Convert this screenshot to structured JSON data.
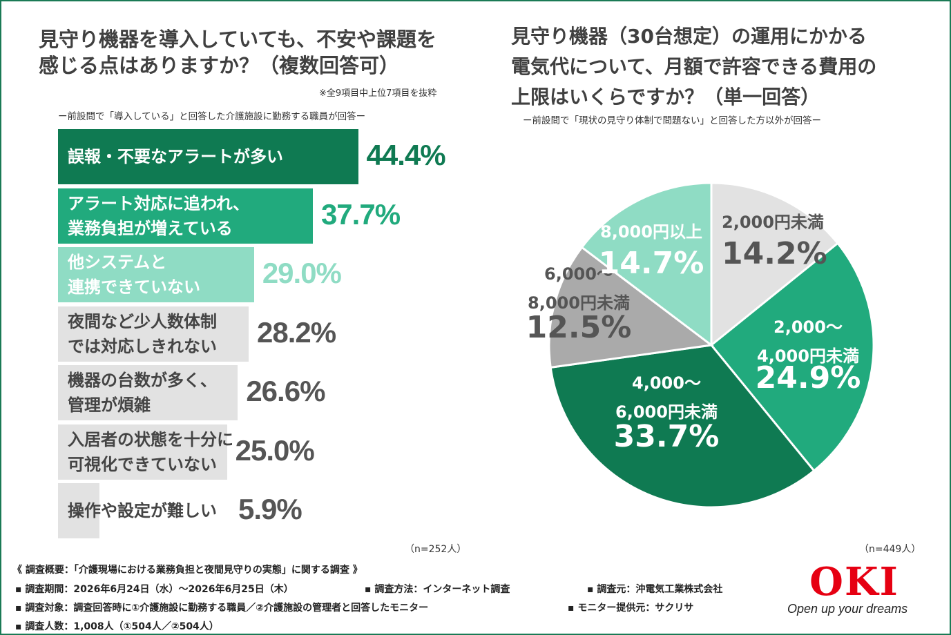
{
  "left": {
    "title": "見守り機器を導入していても、不安や課題を\n感じる点はありますか？（複数回答可）",
    "note": "※全9項目中上位7項目を抜粋",
    "subtitle": "ー前設問で「導入している」と回答した介護施設に勤務する職員が回答ー",
    "n": "（n=252人）"
  },
  "right": {
    "title": "見守り機器（30台想定）の運用にかかる\n電気代について、月額で許容できる費用の\n上限はいくらですか？（単一回答）",
    "subtitle": "ー前設問で「現状の見守り体制で問題ない」と回答した方以外が回答ー",
    "n": "（n=449人）"
  },
  "chart_data": [
    {
      "type": "bar",
      "orientation": "horizontal",
      "categories": [
        "誤報・不要なアラートが多い",
        "アラート対応に追われ、\n業務負担が増えている",
        "他システムと\n連携できていない",
        "夜間など少人数体制\nでは対応しきれない",
        "機器の台数が多く、\n管理が煩雑",
        "入居者の状態を十分に\n可視化できていない",
        "操作や設定が難しい"
      ],
      "values": [
        44.4,
        37.7,
        29.0,
        28.2,
        26.6,
        25.0,
        5.9
      ],
      "value_labels": [
        "44.4%",
        "37.7%",
        "29.0%",
        "28.2%",
        "26.6%",
        "25.0%",
        "5.9%"
      ],
      "colors": [
        "#0f7a52",
        "#21aa7d",
        "#8fdcc4",
        "#e2e2e2",
        "#e2e2e2",
        "#e2e2e2",
        "#e2e2e2"
      ],
      "label_colors": [
        "#ffffff",
        "#ffffff",
        "#ffffff",
        "#444444",
        "#444444",
        "#444444",
        "#444444"
      ],
      "value_colors": [
        "#0f7a52",
        "#21aa7d",
        "#8fdcc4",
        "#555555",
        "#555555",
        "#555555",
        "#555555"
      ],
      "xlim": [
        0,
        50
      ]
    },
    {
      "type": "pie",
      "start": "12 o'clock, clockwise",
      "slices": [
        {
          "label": "2,000円未満",
          "value": 14.2,
          "value_label": "14.2%",
          "color": "#e2e2e2",
          "text_color": "#555555"
        },
        {
          "label": "2,000〜\n4,000円未満",
          "value": 24.9,
          "value_label": "24.9%",
          "color": "#21aa7d",
          "text_color": "#ffffff"
        },
        {
          "label": "4,000〜\n6,000円未満",
          "value": 33.7,
          "value_label": "33.7%",
          "color": "#0f7a52",
          "text_color": "#ffffff"
        },
        {
          "label": "6,000〜\n8,000円未満",
          "value": 12.5,
          "value_label": "12.5%",
          "color": "#aaaaaa",
          "text_color": "#555555"
        },
        {
          "label": "8,000円以上",
          "value": 14.7,
          "value_label": "14.7%",
          "color": "#8fdcc4",
          "text_color": "#ffffff"
        }
      ]
    }
  ],
  "survey": {
    "heading": "《 調査概要：「介護現場における業務負担と夜間見守りの実態」に関する調査 》",
    "period": "▪ 調査期間：2026年6月24日（水）〜2026年6月25日（木）",
    "method": "▪ 調査方法：インターネット調査",
    "organizer": "▪ 調査元：沖電気工業株式会社",
    "target": "▪ 調査対象：調査回答時に①介護施設に勤務する職員／②介護施設の管理者と回答したモニター",
    "provider": "▪ モニター提供元：サクリサ",
    "count": "▪ 調査人数：1,008人（①504人／②504人）"
  },
  "brand": {
    "logo_text": "OKI",
    "slogan": "Open up your dreams",
    "logo_color": "#e60012"
  }
}
